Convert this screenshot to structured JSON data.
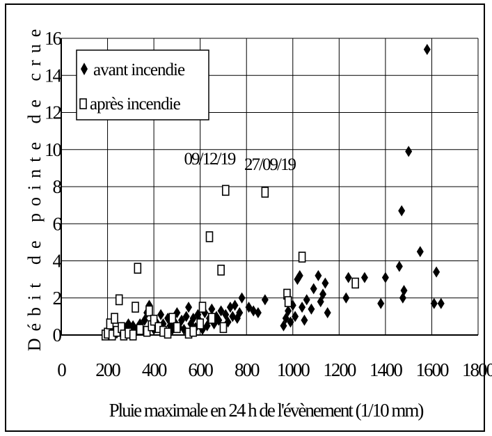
{
  "chart_data": {
    "type": "scatter",
    "title": "",
    "xlabel": "Pluie maximale en 24 h de l'évènement (1/10 mm)",
    "ylabel": "Débit de pointe de crue",
    "xlim": [
      0,
      1800
    ],
    "ylim": [
      0,
      16
    ],
    "x_ticks": [
      0,
      200,
      400,
      600,
      800,
      1000,
      1200,
      1400,
      1600,
      1800
    ],
    "y_ticks": [
      0,
      2,
      4,
      6,
      8,
      10,
      12,
      14,
      16
    ],
    "x_tick_labels": [
      "0",
      "200",
      "400",
      "600",
      "800",
      "1000",
      "1200",
      "1400",
      "1600",
      "1800"
    ],
    "y_tick_labels": [
      "0",
      "2",
      "4",
      "6",
      "8",
      "10",
      "12",
      "14",
      "16"
    ],
    "grid": true,
    "legend_position": "top-left",
    "series": [
      {
        "name": "avant incendie",
        "marker": "diamond",
        "color": "#000000",
        "points": [
          [
            210,
            0.1
          ],
          [
            225,
            0.2
          ],
          [
            240,
            0.1
          ],
          [
            255,
            0.3
          ],
          [
            265,
            0.2
          ],
          [
            280,
            0.4
          ],
          [
            290,
            0.6
          ],
          [
            300,
            0.3
          ],
          [
            310,
            0.5
          ],
          [
            320,
            0.2
          ],
          [
            330,
            0.4
          ],
          [
            340,
            0.6
          ],
          [
            350,
            0.3
          ],
          [
            360,
            0.8
          ],
          [
            370,
            1.2
          ],
          [
            380,
            1.6
          ],
          [
            390,
            0.5
          ],
          [
            400,
            0.3
          ],
          [
            410,
            0.7
          ],
          [
            420,
            0.4
          ],
          [
            430,
            1.1
          ],
          [
            440,
            0.6
          ],
          [
            450,
            0.2
          ],
          [
            460,
            0.9
          ],
          [
            470,
            0.5
          ],
          [
            480,
            0.3
          ],
          [
            490,
            0.7
          ],
          [
            500,
            1.2
          ],
          [
            510,
            0.4
          ],
          [
            520,
            0.8
          ],
          [
            530,
            0.3
          ],
          [
            540,
            1.0
          ],
          [
            550,
            1.5
          ],
          [
            560,
            0.6
          ],
          [
            570,
            0.9
          ],
          [
            580,
            0.4
          ],
          [
            590,
            1.1
          ],
          [
            600,
            0.7
          ],
          [
            610,
            0.3
          ],
          [
            620,
            1.2
          ],
          [
            630,
            0.5
          ],
          [
            640,
            0.9
          ],
          [
            650,
            1.4
          ],
          [
            660,
            0.6
          ],
          [
            670,
            1.0
          ],
          [
            680,
            0.8
          ],
          [
            690,
            1.3
          ],
          [
            700,
            0.4
          ],
          [
            710,
            1.1
          ],
          [
            720,
            0.7
          ],
          [
            730,
            1.5
          ],
          [
            740,
            1.0
          ],
          [
            750,
            1.6
          ],
          [
            760,
            0.9
          ],
          [
            770,
            1.2
          ],
          [
            780,
            2.0
          ],
          [
            810,
            1.5
          ],
          [
            830,
            1.3
          ],
          [
            850,
            1.2
          ],
          [
            880,
            1.9
          ],
          [
            960,
            0.5
          ],
          [
            970,
            0.9
          ],
          [
            980,
            1.3
          ],
          [
            990,
            0.7
          ],
          [
            1000,
            1.6
          ],
          [
            1010,
            1.0
          ],
          [
            1020,
            3.0
          ],
          [
            1030,
            3.2
          ],
          [
            1040,
            1.5
          ],
          [
            1050,
            0.8
          ],
          [
            1060,
            1.9
          ],
          [
            1080,
            1.4
          ],
          [
            1090,
            2.5
          ],
          [
            1110,
            3.2
          ],
          [
            1120,
            1.8
          ],
          [
            1130,
            2.2
          ],
          [
            1140,
            2.8
          ],
          [
            1150,
            1.2
          ],
          [
            1230,
            2.0
          ],
          [
            1240,
            3.1
          ],
          [
            1310,
            3.1
          ],
          [
            1380,
            1.7
          ],
          [
            1400,
            3.1
          ],
          [
            1460,
            3.7
          ],
          [
            1470,
            6.7
          ],
          [
            1475,
            2.0
          ],
          [
            1480,
            2.4
          ],
          [
            1500,
            9.9
          ],
          [
            1550,
            4.5
          ],
          [
            1580,
            15.4
          ],
          [
            1610,
            1.7
          ],
          [
            1620,
            3.4
          ],
          [
            1640,
            1.7
          ]
        ]
      },
      {
        "name": "après incendie",
        "marker": "square-open",
        "color": "#000000",
        "points": [
          [
            190,
            0.0
          ],
          [
            200,
            0.1
          ],
          [
            210,
            0.6
          ],
          [
            220,
            0.0
          ],
          [
            230,
            0.9
          ],
          [
            240,
            0.2
          ],
          [
            250,
            1.9
          ],
          [
            260,
            0.4
          ],
          [
            270,
            0.0
          ],
          [
            290,
            0.1
          ],
          [
            310,
            0.0
          ],
          [
            320,
            1.5
          ],
          [
            330,
            3.6
          ],
          [
            340,
            0.3
          ],
          [
            370,
            0.2
          ],
          [
            380,
            1.3
          ],
          [
            390,
            0.5
          ],
          [
            400,
            0.8
          ],
          [
            420,
            0.4
          ],
          [
            440,
            0.2
          ],
          [
            460,
            0.1
          ],
          [
            480,
            0.9
          ],
          [
            500,
            0.4
          ],
          [
            550,
            0.1
          ],
          [
            570,
            0.2
          ],
          [
            600,
            0.6
          ],
          [
            610,
            1.5
          ],
          [
            640,
            5.3
          ],
          [
            650,
            0.9
          ],
          [
            690,
            3.5
          ],
          [
            700,
            0.4
          ],
          [
            710,
            7.8
          ],
          [
            880,
            7.7
          ],
          [
            975,
            2.2
          ],
          [
            980,
            1.8
          ],
          [
            1040,
            4.2
          ],
          [
            1270,
            2.8
          ]
        ]
      }
    ],
    "annotations": [
      {
        "text": "09/12/19",
        "x": 640,
        "y": 9.2
      },
      {
        "text": "27/09/19",
        "x": 900,
        "y": 8.9
      }
    ]
  }
}
